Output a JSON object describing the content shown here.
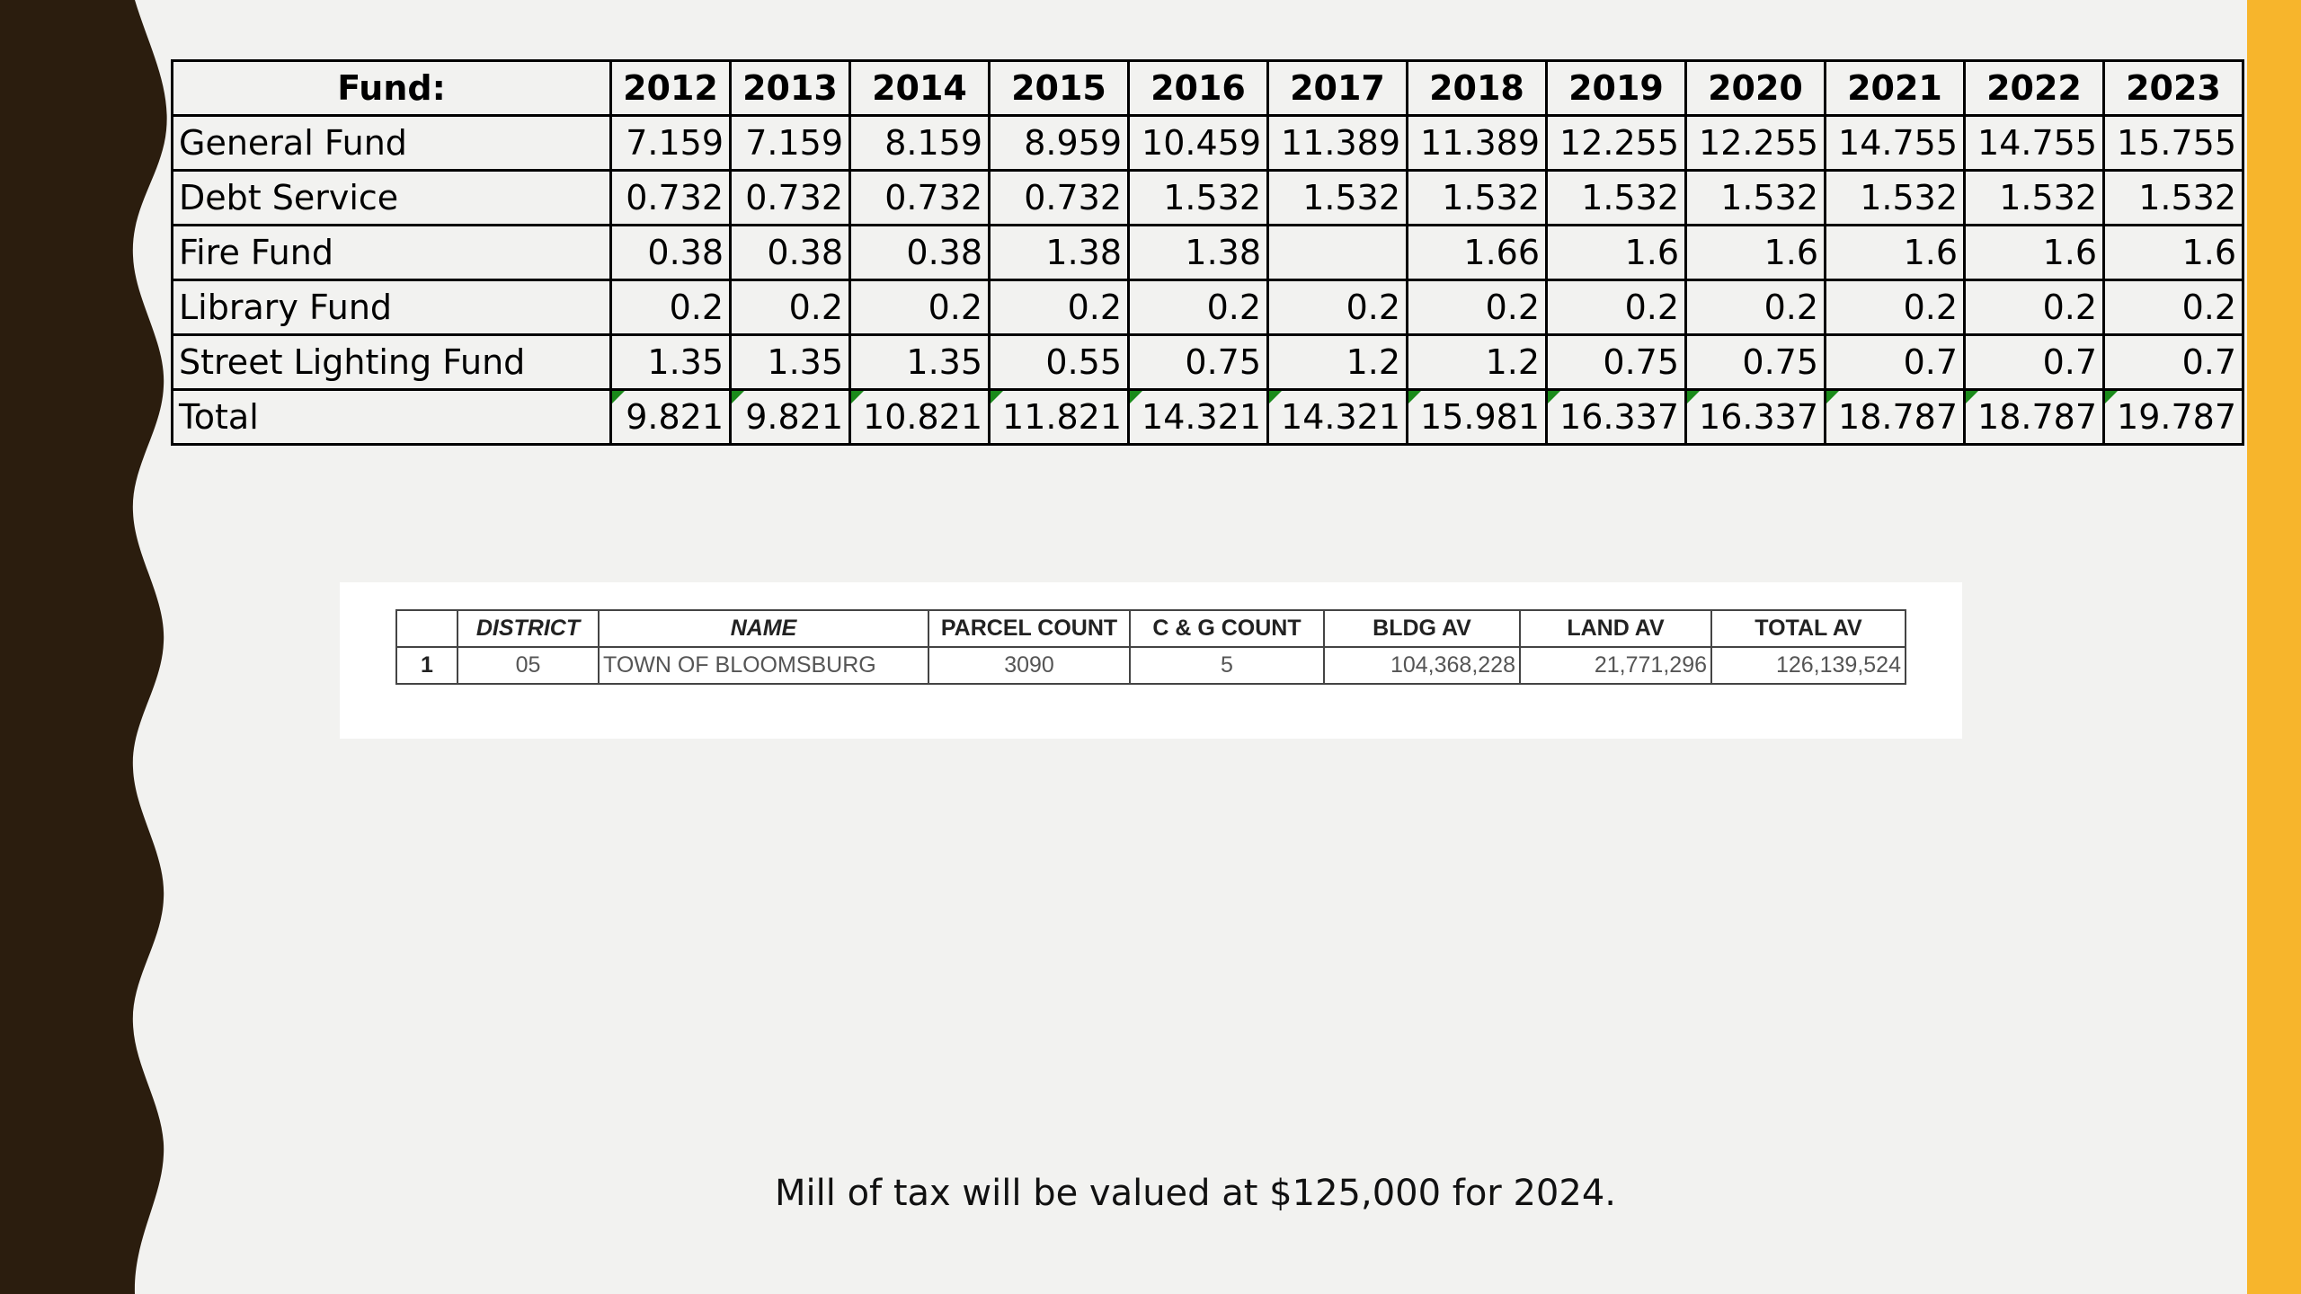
{
  "colors": {
    "background": "#f2f2f0",
    "left_wave": "#2b1d0e",
    "right_bar": "#f7b52c"
  },
  "fund_table": {
    "header": [
      "Fund:",
      "2012",
      "2013",
      "2014",
      "2015",
      "2016",
      "2017",
      "2018",
      "2019",
      "2020",
      "2021",
      "2022",
      "2023"
    ],
    "rows": [
      [
        "General Fund",
        "7.159",
        "7.159",
        "8.159",
        "8.959",
        "10.459",
        "11.389",
        "11.389",
        "12.255",
        "12.255",
        "14.755",
        "14.755",
        "15.755"
      ],
      [
        "Debt Service",
        "0.732",
        "0.732",
        "0.732",
        "0.732",
        "1.532",
        "1.532",
        "1.532",
        "1.532",
        "1.532",
        "1.532",
        "1.532",
        "1.532"
      ],
      [
        "Fire Fund",
        "0.38",
        "0.38",
        "0.38",
        "1.38",
        "1.38",
        "",
        "1.66",
        "1.6",
        "1.6",
        "1.6",
        "1.6",
        "1.6"
      ],
      [
        "Library Fund",
        "0.2",
        "0.2",
        "0.2",
        "0.2",
        "0.2",
        "0.2",
        "0.2",
        "0.2",
        "0.2",
        "0.2",
        "0.2",
        "0.2"
      ],
      [
        "Street Lighting Fund",
        "1.35",
        "1.35",
        "1.35",
        "0.55",
        "0.75",
        "1.2",
        "1.2",
        "0.75",
        "0.75",
        "0.7",
        "0.7",
        "0.7"
      ],
      [
        "Total",
        "9.821",
        "9.821",
        "10.821",
        "11.821",
        "14.321",
        "14.321",
        "15.981",
        "16.337",
        "16.337",
        "18.787",
        "18.787",
        "19.787"
      ]
    ]
  },
  "assessment": {
    "header": [
      "",
      "DISTRICT",
      "NAME",
      "PARCEL COUNT",
      "C & G COUNT",
      "BLDG AV",
      "LAND AV",
      "TOTAL AV"
    ],
    "row": [
      "1",
      "05",
      "TOWN OF BLOOMSBURG",
      "3090",
      "5",
      "104,368,228",
      "21,771,296",
      "126,139,524"
    ]
  },
  "note": "Mill of tax will be valued at $125,000 for 2024."
}
